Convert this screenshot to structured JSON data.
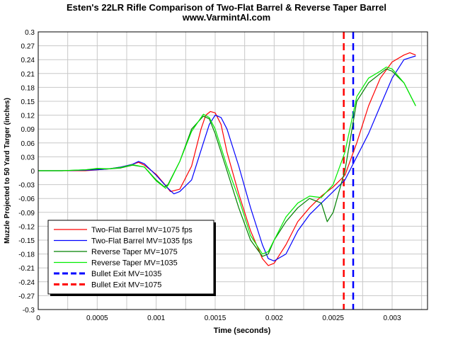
{
  "chart_data": {
    "type": "line",
    "title": "Esten's 22LR Rifle Comparison of Two-Flat Barrel & Reverse Taper Barrel",
    "subtitle": "www.VarmintAl.com",
    "xlabel": "Time (seconds)",
    "ylabel": "Muzzle Projected to 50 Yard Targer (inches)",
    "xlim": [
      0,
      0.0033
    ],
    "ylim": [
      -0.3,
      0.3
    ],
    "x_ticks": [
      "0",
      "0.0005",
      "0.001",
      "0.0015",
      "0.002",
      "0.0025",
      "0.003"
    ],
    "x_tick_values": [
      0,
      0.0005,
      0.001,
      0.0015,
      0.002,
      0.0025,
      0.003
    ],
    "y_ticks": [
      "0.3",
      "0.27",
      "0.24",
      "0.21",
      "0.18",
      "0.15",
      "0.12",
      "0.09",
      "0.06",
      "0.03",
      "0",
      "-0.03",
      "-0.06",
      "-0.09",
      "-0.12",
      "-0.15",
      "-0.18",
      "-0.21",
      "-0.24",
      "-0.27",
      "-0.3"
    ],
    "y_tick_values": [
      0.3,
      0.27,
      0.24,
      0.21,
      0.18,
      0.15,
      0.12,
      0.09,
      0.06,
      0.03,
      0,
      -0.03,
      -0.06,
      -0.09,
      -0.12,
      -0.15,
      -0.18,
      -0.21,
      -0.24,
      -0.27,
      -0.3
    ],
    "grid": true,
    "legend_position": "bottom-left",
    "series": [
      {
        "name": "Two-Flat Barrel MV=1075 fps",
        "color": "#ff0000",
        "x": [
          0,
          0.0002,
          0.0004,
          0.0005,
          0.0006,
          0.0007,
          0.0008,
          0.00085,
          0.0009,
          0.001,
          0.00108,
          0.00112,
          0.0012,
          0.0013,
          0.00138,
          0.00142,
          0.00146,
          0.0015,
          0.00155,
          0.0016,
          0.0017,
          0.0018,
          0.0019,
          0.00195,
          0.002,
          0.00205,
          0.0021,
          0.0022,
          0.0023,
          0.0024,
          0.0025,
          0.0026,
          0.0027,
          0.0028,
          0.0029,
          0.003,
          0.0031,
          0.00315,
          0.0032
        ],
        "y": [
          0,
          0,
          0,
          0.002,
          0.004,
          0.008,
          0.014,
          0.018,
          0.012,
          -0.008,
          -0.032,
          -0.045,
          -0.04,
          0.01,
          0.09,
          0.12,
          0.128,
          0.125,
          0.1,
          0.04,
          -0.05,
          -0.13,
          -0.19,
          -0.205,
          -0.2,
          -0.18,
          -0.16,
          -0.11,
          -0.08,
          -0.055,
          -0.035,
          -0.01,
          0.06,
          0.14,
          0.2,
          0.235,
          0.25,
          0.255,
          0.25
        ]
      },
      {
        "name": "Two-Flat Barrel MV=1035 fps",
        "color": "#0000ff",
        "x": [
          0,
          0.0002,
          0.0004,
          0.0005,
          0.0006,
          0.0007,
          0.0008,
          0.00085,
          0.0009,
          0.001,
          0.0011,
          0.00115,
          0.0012,
          0.0013,
          0.0014,
          0.00145,
          0.0015,
          0.00155,
          0.0016,
          0.0017,
          0.0018,
          0.0019,
          0.00195,
          0.002,
          0.0021,
          0.0022,
          0.0023,
          0.0024,
          0.0025,
          0.0026,
          0.0027,
          0.0028,
          0.0029,
          0.003,
          0.0031,
          0.0032
        ],
        "y": [
          0,
          0,
          0.001,
          0.002,
          0.004,
          0.008,
          0.014,
          0.02,
          0.015,
          -0.01,
          -0.038,
          -0.05,
          -0.045,
          -0.02,
          0.06,
          0.1,
          0.12,
          0.115,
          0.09,
          0.01,
          -0.08,
          -0.16,
          -0.19,
          -0.195,
          -0.18,
          -0.13,
          -0.095,
          -0.07,
          -0.045,
          -0.02,
          0.03,
          0.08,
          0.14,
          0.2,
          0.24,
          0.248
        ]
      },
      {
        "name": "Reverse Taper MV=1075",
        "color": "#008000",
        "x": [
          0,
          0.0002,
          0.0004,
          0.0005,
          0.0006,
          0.0007,
          0.0008,
          0.0009,
          0.001,
          0.00107,
          0.0011,
          0.0012,
          0.0013,
          0.0014,
          0.00145,
          0.0015,
          0.0016,
          0.0017,
          0.0018,
          0.0019,
          0.00195,
          0.002,
          0.0021,
          0.0022,
          0.0023,
          0.0024,
          0.00245,
          0.0025,
          0.0026,
          0.0027,
          0.0028,
          0.0029,
          0.00295,
          0.003,
          0.0031,
          0.0032
        ],
        "y": [
          0,
          0,
          0.002,
          0.004,
          0.004,
          0.006,
          0.012,
          0.008,
          -0.02,
          -0.035,
          -0.03,
          0.02,
          0.09,
          0.118,
          0.112,
          0.08,
          0.0,
          -0.08,
          -0.15,
          -0.185,
          -0.18,
          -0.15,
          -0.11,
          -0.08,
          -0.06,
          -0.07,
          -0.11,
          -0.09,
          0.0,
          0.15,
          0.19,
          0.21,
          0.22,
          0.215,
          0.19,
          0.14
        ]
      },
      {
        "name": "Reverse Taper MV=1035",
        "color": "#00ee00",
        "x": [
          0,
          0.0002,
          0.0004,
          0.0005,
          0.0006,
          0.0007,
          0.0008,
          0.0009,
          0.001,
          0.00108,
          0.0011,
          0.0012,
          0.0013,
          0.0014,
          0.00145,
          0.0015,
          0.0016,
          0.0017,
          0.0018,
          0.0019,
          0.00195,
          0.002,
          0.0021,
          0.0022,
          0.0023,
          0.0024,
          0.0025,
          0.0026,
          0.0027,
          0.0028,
          0.0029,
          0.00295,
          0.003,
          0.0031,
          0.0032
        ],
        "y": [
          0,
          0,
          0.002,
          0.005,
          0.004,
          0.007,
          0.013,
          0.008,
          -0.022,
          -0.038,
          -0.032,
          0.02,
          0.085,
          0.122,
          0.115,
          0.09,
          0.01,
          -0.06,
          -0.14,
          -0.18,
          -0.175,
          -0.15,
          -0.1,
          -0.07,
          -0.055,
          -0.058,
          -0.03,
          0.04,
          0.16,
          0.2,
          0.215,
          0.224,
          0.22,
          0.19,
          0.14
        ]
      }
    ],
    "reference_lines": [
      {
        "name": "Bullet Exit MV=1035",
        "x": 0.00267,
        "color": "#0000ff",
        "style": "dashed"
      },
      {
        "name": "Bullet Exit MV=1075",
        "x": 0.00259,
        "color": "#ff0000",
        "style": "dashed"
      }
    ]
  }
}
